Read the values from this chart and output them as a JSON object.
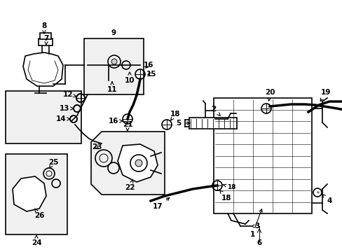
{
  "bg_color": "#ffffff",
  "line_color": "#000000",
  "figsize": [
    4.89,
    3.6
  ],
  "dpi": 100,
  "lw_thin": 0.7,
  "lw_med": 1.2,
  "lw_thick": 2.5,
  "fs_label": 7.5,
  "fs_small": 6.5
}
